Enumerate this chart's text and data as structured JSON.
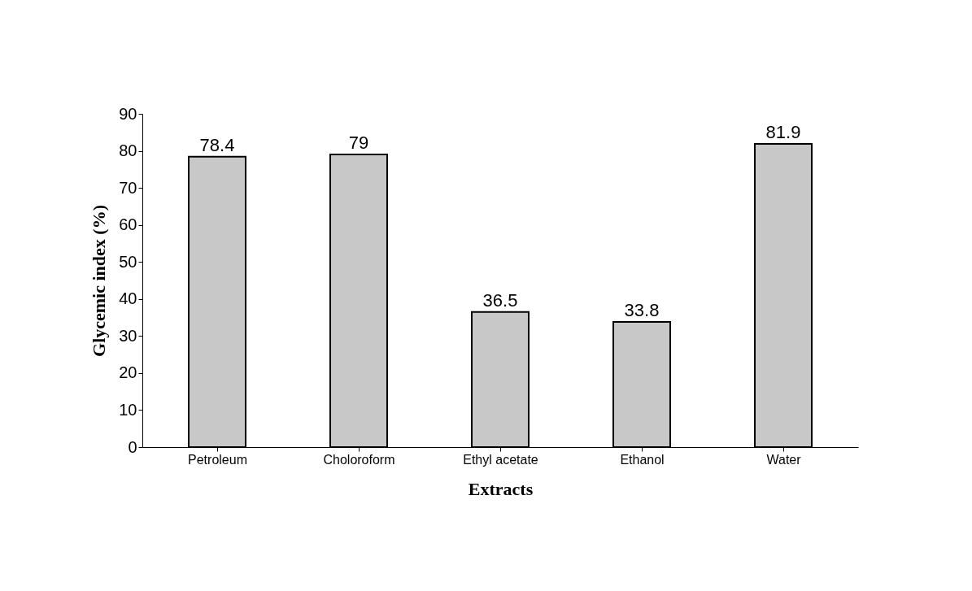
{
  "chart_data": {
    "type": "bar",
    "xlabel": "Extracts",
    "ylabel": "Glycemic index (%)",
    "categories": [
      "Petroleum",
      "Choloroform",
      "Ethyl acetate",
      "Ethanol",
      "Water"
    ],
    "values": [
      78.4,
      79,
      36.5,
      33.8,
      81.9
    ],
    "color": "#c8c8c8",
    "ylim": [
      0,
      90
    ],
    "yticks": [
      0,
      10,
      20,
      30,
      40,
      50,
      60,
      70,
      80,
      90
    ],
    "data_labels": true,
    "grid": false
  }
}
